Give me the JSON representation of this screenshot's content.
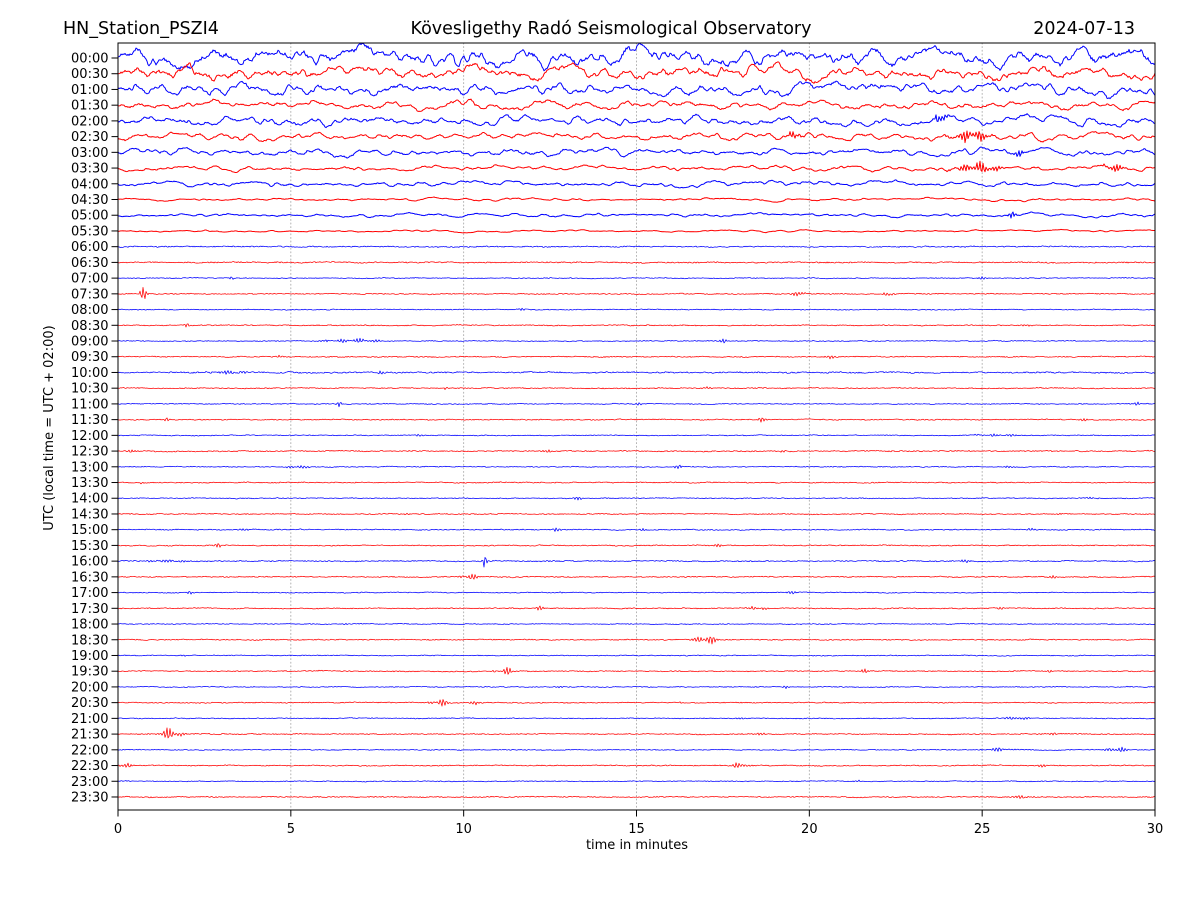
{
  "header": {
    "station": "HN_Station_PSZI4",
    "observatory": "Kövesligethy Radó Seismological Observatory",
    "date": "2024-07-13"
  },
  "chart_data": {
    "type": "line",
    "subtype": "helicorder-seismogram",
    "station": "HN_Station_PSZI4",
    "title": "Kövesligethy Radó Seismological Observatory",
    "date": "2024-07-13",
    "xlabel": "time in minutes",
    "ylabel": "UTC (local time = UTC + 02:00)",
    "xlim": [
      0,
      30
    ],
    "x_ticks": [
      "0",
      "5",
      "10",
      "15",
      "20",
      "25",
      "30"
    ],
    "grid": "vertical dotted lines every 5 minutes",
    "legend": "none",
    "colors": {
      "blue": "#0000ff",
      "red": "#ff0000",
      "grid": "#aaaaaa",
      "frame": "#000000"
    },
    "row_note": "48 half-hour traces, alternating blue (:00) and red (:30); amp = background noise half-amplitude in px; events = bursts {t:start-center minute, dur:duration minutes, amp:peak px}",
    "rows": [
      {
        "label": "00:00",
        "color": "blue",
        "amp": 11,
        "events": []
      },
      {
        "label": "00:30",
        "color": "red",
        "amp": 8,
        "events": []
      },
      {
        "label": "01:00",
        "color": "blue",
        "amp": 7,
        "events": []
      },
      {
        "label": "01:30",
        "color": "red",
        "amp": 5,
        "events": []
      },
      {
        "label": "02:00",
        "color": "blue",
        "amp": 5.5,
        "events": [
          {
            "t": 23.8,
            "dur": 0.3,
            "amp": 12
          }
        ]
      },
      {
        "label": "02:30",
        "color": "red",
        "amp": 4.2,
        "events": [
          {
            "t": 19.6,
            "dur": 0.4,
            "amp": 6
          },
          {
            "t": 24.7,
            "dur": 1.0,
            "amp": 7
          }
        ]
      },
      {
        "label": "03:00",
        "color": "blue",
        "amp": 4.2,
        "events": [
          {
            "t": 26.0,
            "dur": 0.3,
            "amp": 6
          }
        ]
      },
      {
        "label": "03:30",
        "color": "red",
        "amp": 3.0,
        "events": [
          {
            "t": 24.9,
            "dur": 1.2,
            "amp": 6
          },
          {
            "t": 28.8,
            "dur": 0.5,
            "amp": 5
          }
        ]
      },
      {
        "label": "04:00",
        "color": "blue",
        "amp": 3.2,
        "events": []
      },
      {
        "label": "04:30",
        "color": "red",
        "amp": 1.7,
        "events": []
      },
      {
        "label": "05:00",
        "color": "blue",
        "amp": 2.1,
        "events": [
          {
            "t": 25.9,
            "dur": 0.25,
            "amp": 5
          }
        ]
      },
      {
        "label": "05:30",
        "color": "red",
        "amp": 1.3,
        "events": []
      },
      {
        "label": "06:00",
        "color": "blue",
        "amp": 0.9,
        "events": [
          {
            "t": 25.6,
            "dur": 0.15,
            "amp": 2
          }
        ]
      },
      {
        "label": "06:30",
        "color": "red",
        "amp": 1.0,
        "events": []
      },
      {
        "label": "07:00",
        "color": "blue",
        "amp": 0.7,
        "events": [
          {
            "t": 3.3,
            "dur": 0.15,
            "amp": 2.5
          },
          {
            "t": 25.0,
            "dur": 0.25,
            "amp": 1.5
          }
        ]
      },
      {
        "label": "07:30",
        "color": "red",
        "amp": 0.8,
        "events": [
          {
            "t": 0.75,
            "dur": 0.25,
            "amp": 7
          },
          {
            "t": 19.7,
            "dur": 0.3,
            "amp": 6
          },
          {
            "t": 22.3,
            "dur": 0.3,
            "amp": 4
          }
        ]
      },
      {
        "label": "08:00",
        "color": "blue",
        "amp": 0.7,
        "events": [
          {
            "t": 1.3,
            "dur": 0.15,
            "amp": 1.5
          },
          {
            "t": 11.7,
            "dur": 0.15,
            "amp": 2
          }
        ]
      },
      {
        "label": "08:30",
        "color": "red",
        "amp": 0.8,
        "events": [
          {
            "t": 2.0,
            "dur": 0.15,
            "amp": 2.5
          },
          {
            "t": 26.3,
            "dur": 0.4,
            "amp": 1.5
          }
        ]
      },
      {
        "label": "09:00",
        "color": "blue",
        "amp": 0.7,
        "events": [
          {
            "t": 6.8,
            "dur": 1.8,
            "amp": 2.2
          },
          {
            "t": 17.5,
            "dur": 0.2,
            "amp": 2.5
          }
        ]
      },
      {
        "label": "09:30",
        "color": "red",
        "amp": 0.8,
        "events": [
          {
            "t": 4.7,
            "dur": 0.2,
            "amp": 3.5
          },
          {
            "t": 20.6,
            "dur": 0.3,
            "amp": 2
          }
        ]
      },
      {
        "label": "10:00",
        "color": "blue",
        "amp": 1.1,
        "events": [
          {
            "t": 3.2,
            "dur": 1.2,
            "amp": 1.8
          },
          {
            "t": 7.6,
            "dur": 0.2,
            "amp": 2.5
          }
        ]
      },
      {
        "label": "10:30",
        "color": "red",
        "amp": 0.8,
        "events": [
          {
            "t": 9.5,
            "dur": 0.15,
            "amp": 2
          },
          {
            "t": 17.0,
            "dur": 0.3,
            "amp": 1.5
          }
        ]
      },
      {
        "label": "11:00",
        "color": "blue",
        "amp": 0.7,
        "events": [
          {
            "t": 6.4,
            "dur": 0.15,
            "amp": 3.5
          },
          {
            "t": 15.1,
            "dur": 0.2,
            "amp": 2
          },
          {
            "t": 29.5,
            "dur": 0.25,
            "amp": 2.5
          }
        ]
      },
      {
        "label": "11:30",
        "color": "red",
        "amp": 0.8,
        "events": [
          {
            "t": 1.4,
            "dur": 0.15,
            "amp": 2.5
          },
          {
            "t": 18.6,
            "dur": 0.3,
            "amp": 2.5
          },
          {
            "t": 28.0,
            "dur": 0.3,
            "amp": 2
          }
        ]
      },
      {
        "label": "12:00",
        "color": "blue",
        "amp": 0.7,
        "events": [
          {
            "t": 8.7,
            "dur": 0.3,
            "amp": 1.2
          },
          {
            "t": 25.5,
            "dur": 1.5,
            "amp": 1.3
          }
        ]
      },
      {
        "label": "12:30",
        "color": "red",
        "amp": 0.9,
        "events": [
          {
            "t": 0.4,
            "dur": 0.3,
            "amp": 1.8
          },
          {
            "t": 12.4,
            "dur": 0.4,
            "amp": 1.5
          },
          {
            "t": 19.3,
            "dur": 0.3,
            "amp": 1.8
          }
        ]
      },
      {
        "label": "13:00",
        "color": "blue",
        "amp": 0.7,
        "events": [
          {
            "t": 5.2,
            "dur": 0.6,
            "amp": 2.2
          },
          {
            "t": 16.2,
            "dur": 0.3,
            "amp": 2
          },
          {
            "t": 25.7,
            "dur": 0.4,
            "amp": 1.8
          }
        ]
      },
      {
        "label": "13:30",
        "color": "red",
        "amp": 0.8,
        "events": [
          {
            "t": 0.7,
            "dur": 0.15,
            "amp": 2.2
          }
        ]
      },
      {
        "label": "14:00",
        "color": "blue",
        "amp": 0.7,
        "events": [
          {
            "t": 13.3,
            "dur": 0.5,
            "amp": 1.5
          },
          {
            "t": 28.2,
            "dur": 0.4,
            "amp": 1.8
          }
        ]
      },
      {
        "label": "14:30",
        "color": "red",
        "amp": 0.8,
        "events": [
          {
            "t": 8.3,
            "dur": 0.2,
            "amp": 2
          },
          {
            "t": 27.2,
            "dur": 0.3,
            "amp": 1.5
          }
        ]
      },
      {
        "label": "15:00",
        "color": "blue",
        "amp": 0.8,
        "events": [
          {
            "t": 3.7,
            "dur": 0.3,
            "amp": 3
          },
          {
            "t": 12.7,
            "dur": 0.2,
            "amp": 6.5
          },
          {
            "t": 15.2,
            "dur": 0.2,
            "amp": 2.5
          },
          {
            "t": 26.4,
            "dur": 0.3,
            "amp": 2
          }
        ]
      },
      {
        "label": "15:30",
        "color": "red",
        "amp": 0.8,
        "events": [
          {
            "t": 2.9,
            "dur": 0.2,
            "amp": 2.5
          },
          {
            "t": 17.4,
            "dur": 0.4,
            "amp": 1.5
          }
        ]
      },
      {
        "label": "16:00",
        "color": "blue",
        "amp": 0.9,
        "events": [
          {
            "t": 1.4,
            "dur": 1.2,
            "amp": 1.8
          },
          {
            "t": 10.6,
            "dur": 0.15,
            "amp": 7
          },
          {
            "t": 12.5,
            "dur": 0.2,
            "amp": 2
          },
          {
            "t": 24.5,
            "dur": 0.4,
            "amp": 1.5
          }
        ]
      },
      {
        "label": "16:30",
        "color": "red",
        "amp": 0.8,
        "events": [
          {
            "t": 10.2,
            "dur": 0.6,
            "amp": 3.5
          },
          {
            "t": 27.0,
            "dur": 0.3,
            "amp": 1.5
          }
        ]
      },
      {
        "label": "17:00",
        "color": "blue",
        "amp": 0.7,
        "events": [
          {
            "t": 2.1,
            "dur": 0.2,
            "amp": 2
          },
          {
            "t": 12.8,
            "dur": 0.2,
            "amp": 2
          },
          {
            "t": 19.5,
            "dur": 0.3,
            "amp": 1.5
          }
        ]
      },
      {
        "label": "17:30",
        "color": "red",
        "amp": 0.8,
        "events": [
          {
            "t": 12.2,
            "dur": 0.3,
            "amp": 2.5
          },
          {
            "t": 18.5,
            "dur": 0.5,
            "amp": 2.8
          },
          {
            "t": 25.5,
            "dur": 0.3,
            "amp": 1.5
          }
        ]
      },
      {
        "label": "18:00",
        "color": "blue",
        "amp": 0.7,
        "events": [
          {
            "t": 6.5,
            "dur": 0.3,
            "amp": 1.2
          }
        ]
      },
      {
        "label": "18:30",
        "color": "red",
        "amp": 0.8,
        "events": [
          {
            "t": 17.0,
            "dur": 0.7,
            "amp": 5.5
          }
        ]
      },
      {
        "label": "19:00",
        "color": "blue",
        "amp": 0.7,
        "events": [
          {
            "t": 2.0,
            "dur": 0.3,
            "amp": 1.2
          }
        ]
      },
      {
        "label": "19:30",
        "color": "red",
        "amp": 0.8,
        "events": [
          {
            "t": 10.9,
            "dur": 0.15,
            "amp": 2
          },
          {
            "t": 11.3,
            "dur": 0.35,
            "amp": 4.5
          },
          {
            "t": 21.6,
            "dur": 0.3,
            "amp": 2.2
          },
          {
            "t": 27.0,
            "dur": 0.3,
            "amp": 1.5
          }
        ]
      },
      {
        "label": "20:00",
        "color": "blue",
        "amp": 0.7,
        "events": [
          {
            "t": 12.7,
            "dur": 0.4,
            "amp": 1.3
          },
          {
            "t": 19.3,
            "dur": 0.3,
            "amp": 1.5
          }
        ]
      },
      {
        "label": "20:30",
        "color": "red",
        "amp": 0.8,
        "events": [
          {
            "t": 9.3,
            "dur": 0.5,
            "amp": 4.5
          },
          {
            "t": 10.3,
            "dur": 0.5,
            "amp": 2
          },
          {
            "t": 16.3,
            "dur": 0.2,
            "amp": 1.5
          }
        ]
      },
      {
        "label": "21:00",
        "color": "blue",
        "amp": 0.7,
        "events": [
          {
            "t": 18.0,
            "dur": 0.3,
            "amp": 1.3
          },
          {
            "t": 26.0,
            "dur": 0.8,
            "amp": 1.8
          }
        ]
      },
      {
        "label": "21:30",
        "color": "red",
        "amp": 0.8,
        "events": [
          {
            "t": 1.5,
            "dur": 0.7,
            "amp": 6.5
          },
          {
            "t": 18.5,
            "dur": 0.5,
            "amp": 1.8
          },
          {
            "t": 26.9,
            "dur": 0.5,
            "amp": 1.5
          }
        ]
      },
      {
        "label": "22:00",
        "color": "blue",
        "amp": 0.7,
        "events": [
          {
            "t": 25.5,
            "dur": 0.8,
            "amp": 2
          },
          {
            "t": 28.9,
            "dur": 0.6,
            "amp": 3.5
          }
        ]
      },
      {
        "label": "22:30",
        "color": "red",
        "amp": 0.8,
        "events": [
          {
            "t": 0.2,
            "dur": 0.4,
            "amp": 3.5
          },
          {
            "t": 18.0,
            "dur": 0.5,
            "amp": 4
          },
          {
            "t": 26.8,
            "dur": 0.5,
            "amp": 1.5
          }
        ]
      },
      {
        "label": "23:00",
        "color": "blue",
        "amp": 0.7,
        "events": [
          {
            "t": 21.4,
            "dur": 0.2,
            "amp": 1.2
          }
        ]
      },
      {
        "label": "23:30",
        "color": "red",
        "amp": 0.8,
        "events": [
          {
            "t": 26.1,
            "dur": 0.8,
            "amp": 1.5
          }
        ]
      }
    ]
  }
}
